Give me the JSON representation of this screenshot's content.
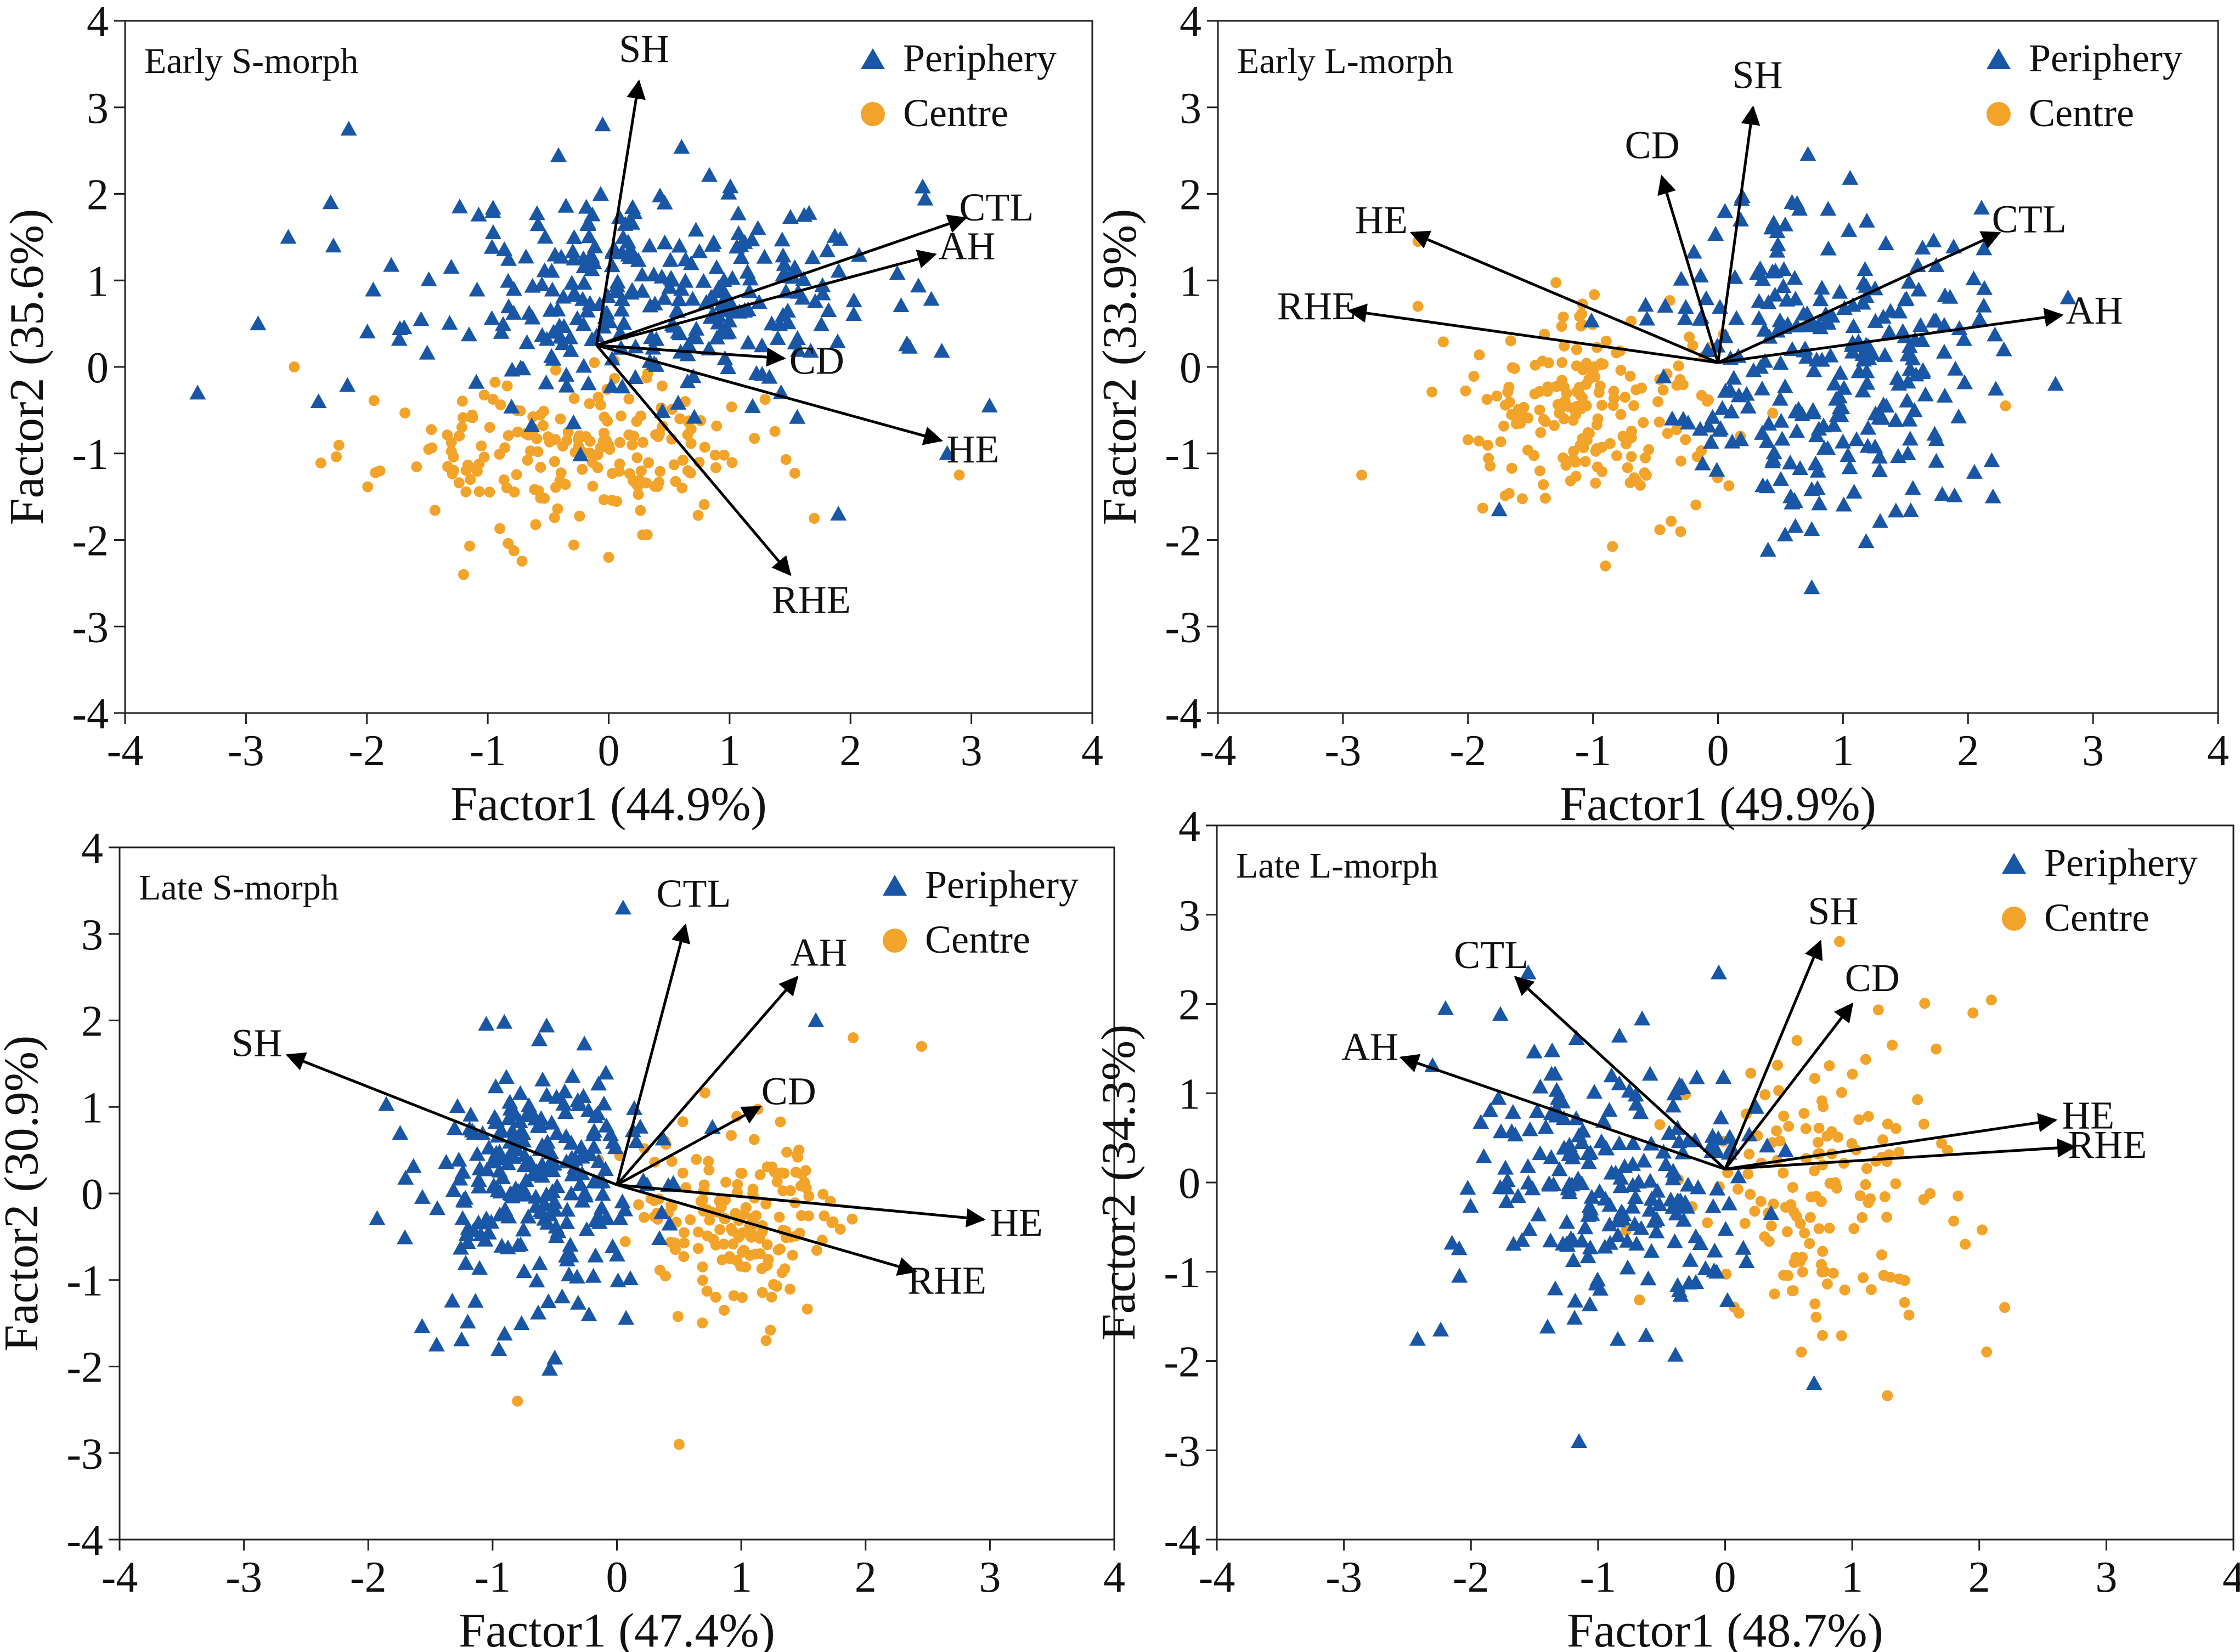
{
  "figure": {
    "panels": 4
  },
  "colors": {
    "periphery": "#1a56a6",
    "centre": "#f2a32a",
    "axis": "#222222",
    "arrow": "#000000"
  },
  "chart_data": [
    {
      "type": "scatter",
      "title": "Early S-morph",
      "xlabel": "Factor1 (44.9%)",
      "ylabel": "Factor2 (35.6%)",
      "xlim": [
        -4,
        4
      ],
      "ylim": [
        -4,
        4
      ],
      "xticks": [
        "-4",
        "-3",
        "-2",
        "-1",
        "0",
        "1",
        "2",
        "3",
        "4"
      ],
      "yticks": [
        "4",
        "3",
        "2",
        "1",
        "0",
        "-1",
        "-2",
        "-3",
        "-4"
      ],
      "legend": {
        "periphery": "Periphery",
        "centre": "Centre",
        "position": "top-right"
      },
      "origin": [
        -0.1,
        0.25
      ],
      "vectors": [
        {
          "name": "SH",
          "to": [
            0.25,
            3.3
          ],
          "label": "SH"
        },
        {
          "name": "CTL",
          "to": [
            2.95,
            1.72
          ],
          "label": "CTL"
        },
        {
          "name": "AH",
          "to": [
            2.7,
            1.3
          ],
          "label": "AH"
        },
        {
          "name": "CD",
          "to": [
            1.45,
            0.1
          ],
          "label": "CD"
        },
        {
          "name": "HE",
          "to": [
            2.75,
            -0.85
          ],
          "label": "HE"
        },
        {
          "name": "RHE",
          "to": [
            1.5,
            -2.4
          ],
          "label": "RHE"
        }
      ],
      "periphery": {
        "center": [
          0.4,
          0.85
        ],
        "spread": [
          0.95,
          0.62
        ],
        "count": 300,
        "seed": 11,
        "extra": [
          [
            -3.4,
            -0.3
          ],
          [
            -2.15,
            2.75
          ],
          [
            -2.65,
            1.5
          ],
          [
            -2.9,
            0.5
          ],
          [
            -2.4,
            -0.4
          ],
          [
            -2.3,
            1.9
          ],
          [
            3.15,
            -0.45
          ],
          [
            1.9,
            -1.7
          ],
          [
            -0.05,
            2.8
          ],
          [
            2.8,
            -1.0
          ]
        ]
      },
      "centre": {
        "center": [
          -0.35,
          -1.0
        ],
        "spread": [
          0.75,
          0.42
        ],
        "count": 200,
        "seed": 23,
        "extra": [
          [
            -2.6,
            0.0
          ],
          [
            -1.2,
            -2.4
          ],
          [
            2.9,
            -1.25
          ],
          [
            0.0,
            -2.2
          ],
          [
            1.7,
            -1.75
          ]
        ]
      }
    },
    {
      "type": "scatter",
      "title": "Early L-morph",
      "xlabel": "Factor1 (49.9%)",
      "ylabel": "Factor2 (33.9%)",
      "xlim": [
        -4,
        4
      ],
      "ylim": [
        -4,
        4
      ],
      "xticks": [
        "-4",
        "-3",
        "-2",
        "-1",
        "0",
        "1",
        "2",
        "3",
        "4"
      ],
      "yticks": [
        "4",
        "3",
        "2",
        "1",
        "0",
        "-1",
        "-2",
        "-3",
        "-4"
      ],
      "legend": {
        "periphery": "Periphery",
        "centre": "Centre",
        "position": "top-right"
      },
      "origin": [
        0.0,
        0.05
      ],
      "vectors": [
        {
          "name": "SH",
          "to": [
            0.28,
            3.0
          ],
          "label": "SH"
        },
        {
          "name": "CD",
          "to": [
            -0.45,
            2.2
          ],
          "label": "CD"
        },
        {
          "name": "HE",
          "to": [
            -2.45,
            1.55
          ],
          "label": "HE"
        },
        {
          "name": "RHE",
          "to": [
            -2.95,
            0.65
          ],
          "label": "RHE"
        },
        {
          "name": "CTL",
          "to": [
            2.25,
            1.55
          ],
          "label": "CTL"
        },
        {
          "name": "AH",
          "to": [
            2.75,
            0.6
          ],
          "label": "AH"
        }
      ],
      "periphery": {
        "center": [
          0.85,
          0.15
        ],
        "spread": [
          0.6,
          0.95
        ],
        "count": 270,
        "seed": 37,
        "extra": [
          [
            2.7,
            -0.2
          ],
          [
            2.8,
            0.8
          ],
          [
            -1.75,
            -1.65
          ],
          [
            0.75,
            -2.55
          ],
          [
            2.2,
            -1.5
          ]
        ]
      },
      "centre": {
        "center": [
          -1.0,
          -0.5
        ],
        "spread": [
          0.55,
          0.55
        ],
        "count": 190,
        "seed": 41,
        "extra": [
          [
            -2.85,
            -1.25
          ],
          [
            -2.4,
            1.45
          ],
          [
            -2.4,
            0.7
          ],
          [
            2.3,
            -0.45
          ],
          [
            -0.9,
            -2.3
          ]
        ]
      }
    },
    {
      "type": "scatter",
      "title": "Late S-morph",
      "xlabel": "Factor1 (47.4%)",
      "ylabel": "Factor2 (30.9%)",
      "xlim": [
        -4,
        4
      ],
      "ylim": [
        -4,
        4
      ],
      "xticks": [
        "-4",
        "-3",
        "-2",
        "-1",
        "0",
        "1",
        "2",
        "3",
        "4"
      ],
      "yticks": [
        "4",
        "3",
        "2",
        "1",
        "0",
        "-1",
        "-2",
        "-3",
        "-4"
      ],
      "legend": {
        "periphery": "Periphery",
        "centre": "Centre",
        "position": "top-right"
      },
      "origin": [
        0.0,
        0.1
      ],
      "vectors": [
        {
          "name": "CTL",
          "to": [
            0.55,
            3.1
          ],
          "label": "CTL"
        },
        {
          "name": "AH",
          "to": [
            1.45,
            2.5
          ],
          "label": "AH"
        },
        {
          "name": "SH",
          "to": [
            -2.65,
            1.6
          ],
          "label": "SH"
        },
        {
          "name": "CD",
          "to": [
            1.15,
            1.0
          ],
          "label": "CD"
        },
        {
          "name": "HE",
          "to": [
            2.95,
            -0.3
          ],
          "label": "HE"
        },
        {
          "name": "RHE",
          "to": [
            2.4,
            -0.9
          ],
          "label": "RHE"
        }
      ],
      "periphery": {
        "center": [
          -0.6,
          0.1
        ],
        "spread": [
          0.5,
          0.75
        ],
        "count": 250,
        "seed": 53,
        "extra": [
          [
            -1.45,
            -1.75
          ],
          [
            0.05,
            3.3
          ],
          [
            1.6,
            2.0
          ],
          [
            -0.95,
            -1.8
          ],
          [
            -0.5,
            -1.9
          ]
        ]
      },
      "centre": {
        "center": [
          0.95,
          -0.2
        ],
        "spread": [
          0.42,
          0.55
        ],
        "count": 170,
        "seed": 61,
        "extra": [
          [
            2.45,
            1.7
          ],
          [
            1.9,
            1.8
          ],
          [
            -0.8,
            -2.4
          ],
          [
            0.5,
            -2.9
          ],
          [
            1.2,
            -1.7
          ]
        ]
      }
    },
    {
      "type": "scatter",
      "title": "Late L-morph",
      "xlabel": "Factor1 (48.7%)",
      "ylabel": "Factor2 (34.3%)",
      "xlim": [
        -4,
        4
      ],
      "ylim": [
        -4,
        4
      ],
      "xticks": [
        "-4",
        "-3",
        "-2",
        "-1",
        "0",
        "1",
        "2",
        "3",
        "4"
      ],
      "yticks": [
        "4",
        "3",
        "2",
        "1",
        "0",
        "-1",
        "-2",
        "-3",
        "-4"
      ],
      "legend": {
        "periphery": "Periphery",
        "centre": "Centre",
        "position": "top-right"
      },
      "origin": [
        0.0,
        0.15
      ],
      "vectors": [
        {
          "name": "SH",
          "to": [
            0.75,
            2.7
          ],
          "label": "SH"
        },
        {
          "name": "CD",
          "to": [
            1.0,
            2.0
          ],
          "label": "CD"
        },
        {
          "name": "CTL",
          "to": [
            -1.65,
            2.3
          ],
          "label": "CTL"
        },
        {
          "name": "AH",
          "to": [
            -2.55,
            1.4
          ],
          "label": "AH"
        },
        {
          "name": "HE",
          "to": [
            2.6,
            0.7
          ],
          "label": "HE"
        },
        {
          "name": "RHE",
          "to": [
            2.75,
            0.4
          ],
          "label": "RHE"
        }
      ],
      "periphery": {
        "center": [
          -0.85,
          0.0
        ],
        "spread": [
          0.65,
          0.8
        ],
        "count": 220,
        "seed": 71,
        "extra": [
          [
            -2.2,
            1.95
          ],
          [
            -1.15,
            -2.9
          ],
          [
            0.7,
            -2.25
          ],
          [
            -1.55,
            2.35
          ],
          [
            -0.05,
            2.35
          ]
        ]
      },
      "centre": {
        "center": [
          0.75,
          -0.1
        ],
        "spread": [
          0.55,
          0.85
        ],
        "count": 150,
        "seed": 83,
        "extra": [
          [
            0.9,
            2.7
          ],
          [
            1.95,
            1.9
          ],
          [
            2.2,
            -1.4
          ],
          [
            1.15,
            -1.2
          ],
          [
            0.6,
            -1.9
          ]
        ]
      }
    }
  ]
}
